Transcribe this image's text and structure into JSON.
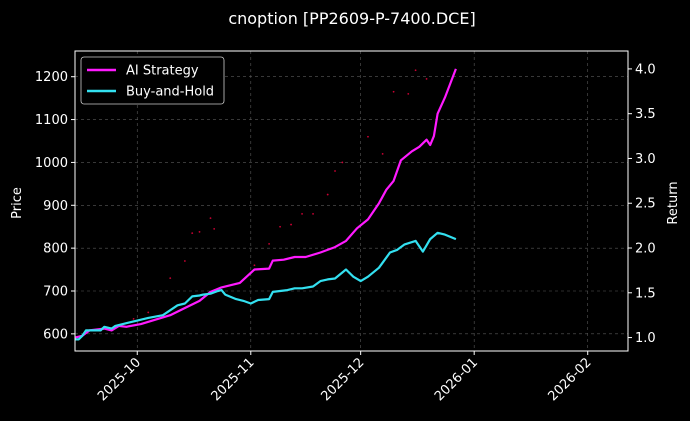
{
  "chart_data": {
    "type": "line",
    "title": "cnoption [PP2609-P-7400.DCE]",
    "xlabel": "",
    "ylabel": "Price",
    "ylabel_right": "Return",
    "x_type": "date",
    "xlim": [
      "2025-09-14",
      "2026-02-12"
    ],
    "ylim": [
      560,
      1260
    ],
    "ylim_right": [
      0.85,
      4.2
    ],
    "x_ticks": [
      "2025-10",
      "2025-11",
      "2025-12",
      "2026-01",
      "2026-02"
    ],
    "y_ticks": [
      "600",
      "700",
      "800",
      "900",
      "1000",
      "1100",
      "1200"
    ],
    "y_ticks_right": [
      "1.0",
      "1.5",
      "2.0",
      "2.5",
      "3.0",
      "3.5",
      "4.0"
    ],
    "grid": true,
    "legend_position": "top-left",
    "colors": {
      "background": "#000000",
      "strategy": "#ff1aff",
      "buyhold": "#33e0f0",
      "price_markers": "#cc0033",
      "grid": "#5a5a5a"
    },
    "series": [
      {
        "name": "AI Strategy",
        "axis": "right",
        "color": "#ff1aff",
        "x": [
          "2025-09-14",
          "2025-09-16",
          "2025-09-18",
          "2025-09-22",
          "2025-09-24",
          "2025-09-26",
          "2025-09-28",
          "2025-10-02",
          "2025-10-10",
          "2025-10-14",
          "2025-10-18",
          "2025-10-21",
          "2025-10-24",
          "2025-10-29",
          "2025-11-02",
          "2025-11-06",
          "2025-11-07",
          "2025-11-10",
          "2025-11-13",
          "2025-11-16",
          "2025-11-20",
          "2025-11-24",
          "2025-11-27",
          "2025-11-30",
          "2025-12-03",
          "2025-12-06",
          "2025-12-08",
          "2025-12-10",
          "2025-12-12",
          "2025-12-15",
          "2025-12-17",
          "2025-12-19",
          "2025-12-20",
          "2025-12-21",
          "2025-12-22",
          "2025-12-24",
          "2025-12-27"
        ],
        "y": [
          1.0,
          1.02,
          1.08,
          1.1,
          1.08,
          1.13,
          1.12,
          1.15,
          1.25,
          1.33,
          1.41,
          1.51,
          1.56,
          1.61,
          1.76,
          1.77,
          1.86,
          1.87,
          1.9,
          1.9,
          1.95,
          2.01,
          2.08,
          2.22,
          2.32,
          2.5,
          2.65,
          2.75,
          2.98,
          3.08,
          3.13,
          3.21,
          3.15,
          3.25,
          3.5,
          3.68,
          4.0
        ]
      },
      {
        "name": "Buy-and-Hold",
        "axis": "right",
        "color": "#33e0f0",
        "x": [
          "2025-09-14",
          "2025-09-15",
          "2025-09-16",
          "2025-09-17",
          "2025-09-18",
          "2025-09-21",
          "2025-09-22",
          "2025-09-23",
          "2025-09-24",
          "2025-09-25",
          "2025-09-28",
          "2025-10-01",
          "2025-10-04",
          "2025-10-08",
          "2025-10-12",
          "2025-10-14",
          "2025-10-16",
          "2025-10-18",
          "2025-10-19",
          "2025-10-21",
          "2025-10-23",
          "2025-10-24",
          "2025-10-25",
          "2025-10-28",
          "2025-10-30",
          "2025-11-01",
          "2025-11-03",
          "2025-11-06",
          "2025-11-07",
          "2025-11-09",
          "2025-11-11",
          "2025-11-13",
          "2025-11-15",
          "2025-11-18",
          "2025-11-20",
          "2025-11-22",
          "2025-11-24",
          "2025-11-27",
          "2025-11-29",
          "2025-12-01",
          "2025-12-03",
          "2025-12-06",
          "2025-12-09",
          "2025-12-11",
          "2025-12-13",
          "2025-12-16",
          "2025-12-18",
          "2025-12-20",
          "2025-12-22",
          "2025-12-24",
          "2025-12-27"
        ],
        "y": [
          0.98,
          0.98,
          1.02,
          1.08,
          1.08,
          1.08,
          1.12,
          1.11,
          1.1,
          1.13,
          1.16,
          1.19,
          1.22,
          1.25,
          1.36,
          1.38,
          1.46,
          1.47,
          1.48,
          1.49,
          1.52,
          1.53,
          1.48,
          1.43,
          1.41,
          1.38,
          1.42,
          1.43,
          1.51,
          1.52,
          1.53,
          1.55,
          1.55,
          1.57,
          1.63,
          1.65,
          1.66,
          1.76,
          1.68,
          1.63,
          1.68,
          1.78,
          1.95,
          1.98,
          2.04,
          2.08,
          1.96,
          2.1,
          2.17,
          2.15,
          2.1
        ]
      },
      {
        "name": "",
        "axis": "left",
        "type": "scatter",
        "color": "#cc0033",
        "x": [
          "2025-09-30",
          "2025-10-04",
          "2025-10-10",
          "2025-10-14",
          "2025-10-16",
          "2025-10-18",
          "2025-10-21",
          "2025-10-22",
          "2025-11-02",
          "2025-11-06",
          "2025-11-09",
          "2025-11-12",
          "2025-11-15",
          "2025-11-18",
          "2025-11-22",
          "2025-11-24",
          "2025-11-26",
          "2025-12-03",
          "2025-12-07",
          "2025-12-10",
          "2025-12-14",
          "2025-12-16",
          "2025-12-19"
        ],
        "y": [
          635,
          650,
          730,
          770,
          835,
          838,
          870,
          845,
          760,
          810,
          850,
          855,
          880,
          880,
          925,
          980,
          1000,
          1060,
          1020,
          1165,
          1160,
          1215,
          1195
        ]
      }
    ]
  }
}
